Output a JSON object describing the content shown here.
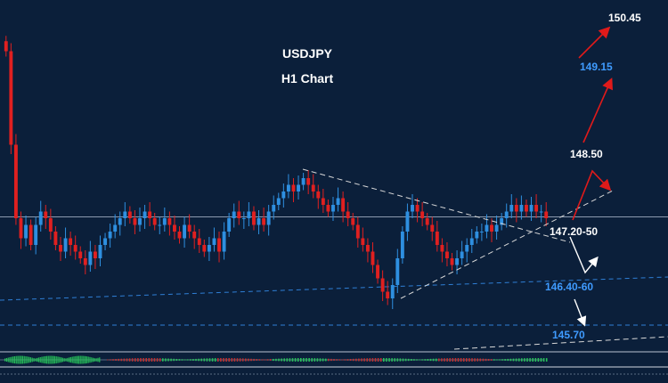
{
  "colors": {
    "background": "#0b1f3a",
    "bull": "#2e8fe0",
    "bear": "#e02020",
    "trendline": "#d8d8d8",
    "support_line": "#2f7fd6",
    "arrow_up": "#e01a1a",
    "arrow_down": "#ffffff",
    "label_white": "#ffffff",
    "label_blue": "#3f9bff"
  },
  "chart_data": {
    "type": "candlestick",
    "title": "USDJPY",
    "subtitle": "H1 Chart",
    "ylim": [
      145.4,
      150.6
    ],
    "current_price": 147.42,
    "candles_close": [
      149.9,
      148.5,
      147.4,
      147.1,
      147.3,
      147.0,
      147.3,
      147.5,
      147.4,
      147.2,
      147.0,
      146.9,
      147.1,
      147.0,
      146.9,
      146.8,
      146.7,
      146.9,
      146.8,
      147.0,
      147.1,
      147.2,
      147.3,
      147.4,
      147.5,
      147.4,
      147.3,
      147.4,
      147.5,
      147.4,
      147.3,
      147.3,
      147.4,
      147.3,
      147.2,
      147.1,
      147.3,
      147.2,
      147.1,
      147.0,
      146.9,
      147.0,
      147.1,
      146.9,
      147.2,
      147.4,
      147.5,
      147.4,
      147.4,
      147.5,
      147.3,
      147.4,
      147.3,
      147.5,
      147.6,
      147.7,
      147.8,
      147.9,
      147.8,
      147.9,
      148.0,
      147.9,
      147.8,
      147.7,
      147.6,
      147.5,
      147.6,
      147.7,
      147.5,
      147.4,
      147.3,
      147.1,
      147.0,
      146.9,
      146.7,
      146.5,
      146.3,
      146.2,
      146.4,
      146.8,
      147.2,
      147.5,
      147.6,
      147.5,
      147.4,
      147.3,
      147.2,
      147.0,
      146.9,
      146.8,
      146.7,
      146.8,
      146.9,
      147.0,
      147.1,
      147.2,
      147.2,
      147.3,
      147.2,
      147.3,
      147.4,
      147.5,
      147.6,
      147.5,
      147.6,
      147.5,
      147.6,
      147.5,
      147.5,
      147.4
    ],
    "annotations": {
      "up_targets": [
        "150.45",
        "149.15",
        "148.50"
      ],
      "down_targets": [
        "147.20-50",
        "146.40-60",
        "145.70"
      ]
    }
  }
}
